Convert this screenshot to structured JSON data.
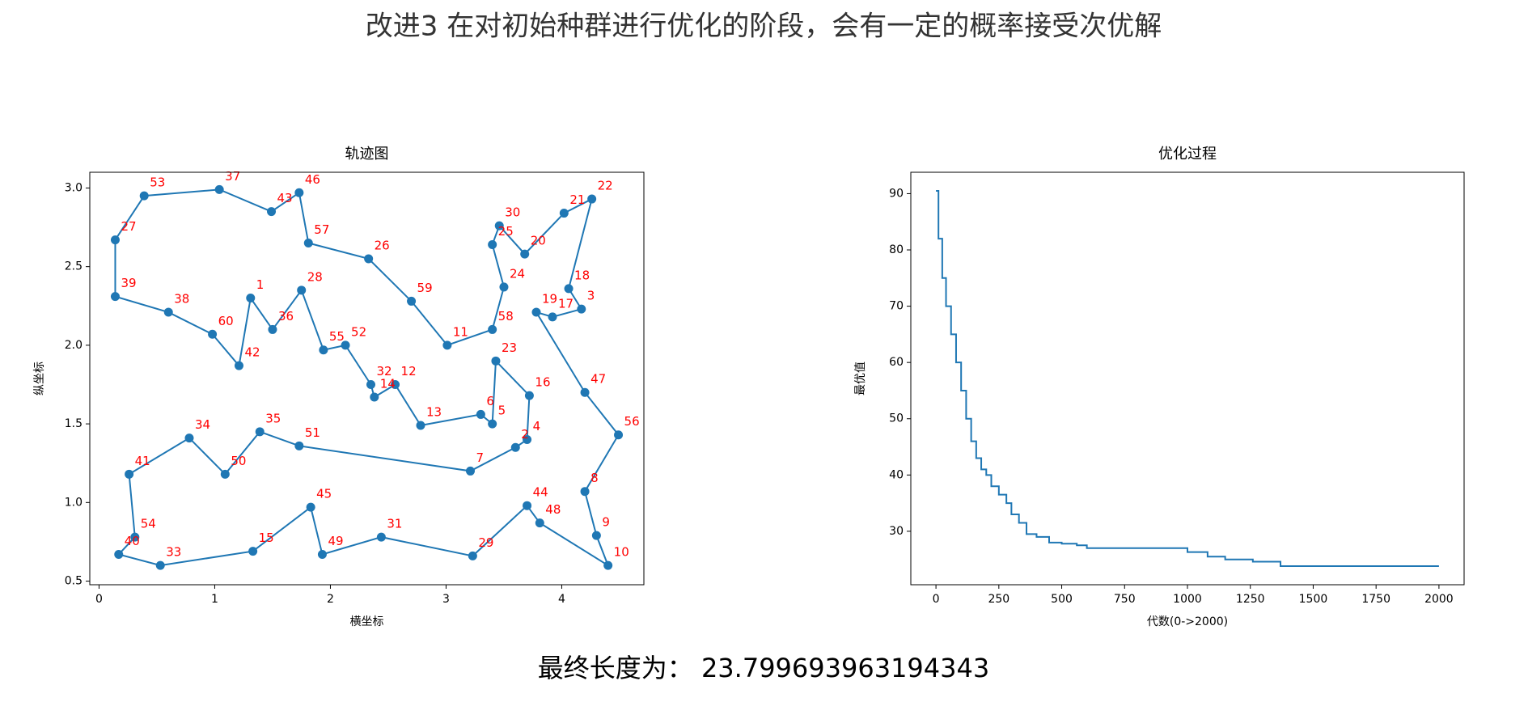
{
  "title": "改进3 在对初始种群进行优化的阶段，会有一定的概率接受次优解",
  "result": "最终长度为： 23.799693963194343",
  "chart_data": [
    {
      "type": "line",
      "title": "轨迹图",
      "x_label": "横坐标",
      "y_label": "纵坐标",
      "color": "#1f77b4",
      "label_color": "#ff0000",
      "markers": true,
      "closed": true,
      "labels": [
        "53",
        "37",
        "43",
        "46",
        "57",
        "26",
        "59",
        "11",
        "58",
        "24",
        "25",
        "30",
        "20",
        "21",
        "22",
        "18",
        "3",
        "17",
        "19",
        "47",
        "56",
        "8",
        "9",
        "10",
        "48",
        "44",
        "29",
        "31",
        "49",
        "45",
        "15",
        "33",
        "40",
        "54",
        "41",
        "34",
        "50",
        "35",
        "51",
        "7",
        "2",
        "4",
        "16",
        "23",
        "5",
        "6",
        "13",
        "12",
        "14",
        "32",
        "52",
        "55",
        "28",
        "36",
        "1",
        "42",
        "60",
        "38",
        "39",
        "27"
      ],
      "x": [
        0.39,
        1.04,
        1.49,
        1.73,
        1.81,
        2.33,
        2.7,
        3.01,
        3.4,
        3.5,
        3.4,
        3.46,
        3.68,
        4.02,
        4.26,
        4.06,
        4.17,
        3.92,
        3.78,
        4.2,
        4.49,
        4.2,
        4.3,
        4.4,
        3.81,
        3.7,
        3.23,
        2.44,
        1.93,
        1.83,
        1.33,
        0.53,
        0.17,
        0.31,
        0.26,
        0.78,
        1.09,
        1.39,
        1.73,
        3.21,
        3.6,
        3.7,
        3.72,
        3.43,
        3.4,
        3.3,
        2.78,
        2.56,
        2.38,
        2.35,
        2.13,
        1.94,
        1.75,
        1.5,
        1.31,
        1.21,
        0.98,
        0.6,
        0.14,
        0.14
      ],
      "values": [
        2.95,
        2.99,
        2.85,
        2.97,
        2.65,
        2.55,
        2.28,
        2.0,
        2.1,
        2.37,
        2.64,
        2.76,
        2.58,
        2.84,
        2.93,
        2.36,
        2.23,
        2.18,
        2.21,
        1.7,
        1.43,
        1.07,
        0.79,
        0.6,
        0.87,
        0.98,
        0.66,
        0.78,
        0.67,
        0.97,
        0.69,
        0.6,
        0.67,
        0.78,
        1.18,
        1.41,
        1.18,
        1.45,
        1.36,
        1.2,
        1.35,
        1.4,
        1.68,
        1.9,
        1.5,
        1.56,
        1.49,
        1.75,
        1.67,
        1.75,
        2.0,
        1.97,
        2.35,
        2.1,
        2.3,
        1.87,
        2.07,
        2.21,
        2.31,
        2.67
      ],
      "xlim": [
        -0.08,
        4.71
      ],
      "ylim": [
        0.477,
        3.1
      ],
      "xticks": [
        0,
        1,
        2,
        3,
        4
      ],
      "yticks": [
        0.5,
        {
          "value": 1.0,
          "label": "1.0"
        },
        1.5,
        {
          "value": 2.0,
          "label": "2.0"
        },
        2.5,
        {
          "value": 3.0,
          "label": "3.0"
        }
      ]
    },
    {
      "type": "line",
      "title": "优化过程",
      "x_label": "代数(0->2000)",
      "y_label": "最优值",
      "color": "#1f77b4",
      "step": "post",
      "x": [
        0,
        10,
        25,
        40,
        60,
        80,
        100,
        120,
        140,
        160,
        180,
        200,
        220,
        250,
        280,
        300,
        330,
        360,
        400,
        450,
        500,
        560,
        600,
        800,
        1000,
        1080,
        1150,
        1260,
        1370,
        2000
      ],
      "values": [
        90.5,
        82,
        75,
        70,
        65,
        60,
        55,
        50,
        46,
        43,
        41,
        40,
        38,
        36.5,
        35,
        33,
        31.5,
        29.5,
        29,
        28,
        27.8,
        27.5,
        27,
        27,
        26.3,
        25.5,
        25,
        24.6,
        23.8,
        23.8
      ],
      "xlim": [
        -100,
        2100
      ],
      "ylim": [
        20.5,
        93.8
      ],
      "xticks": [
        0,
        250,
        500,
        750,
        1000,
        1250,
        1500,
        1750,
        2000
      ],
      "yticks": [
        30,
        40,
        50,
        60,
        70,
        80,
        90
      ]
    }
  ]
}
